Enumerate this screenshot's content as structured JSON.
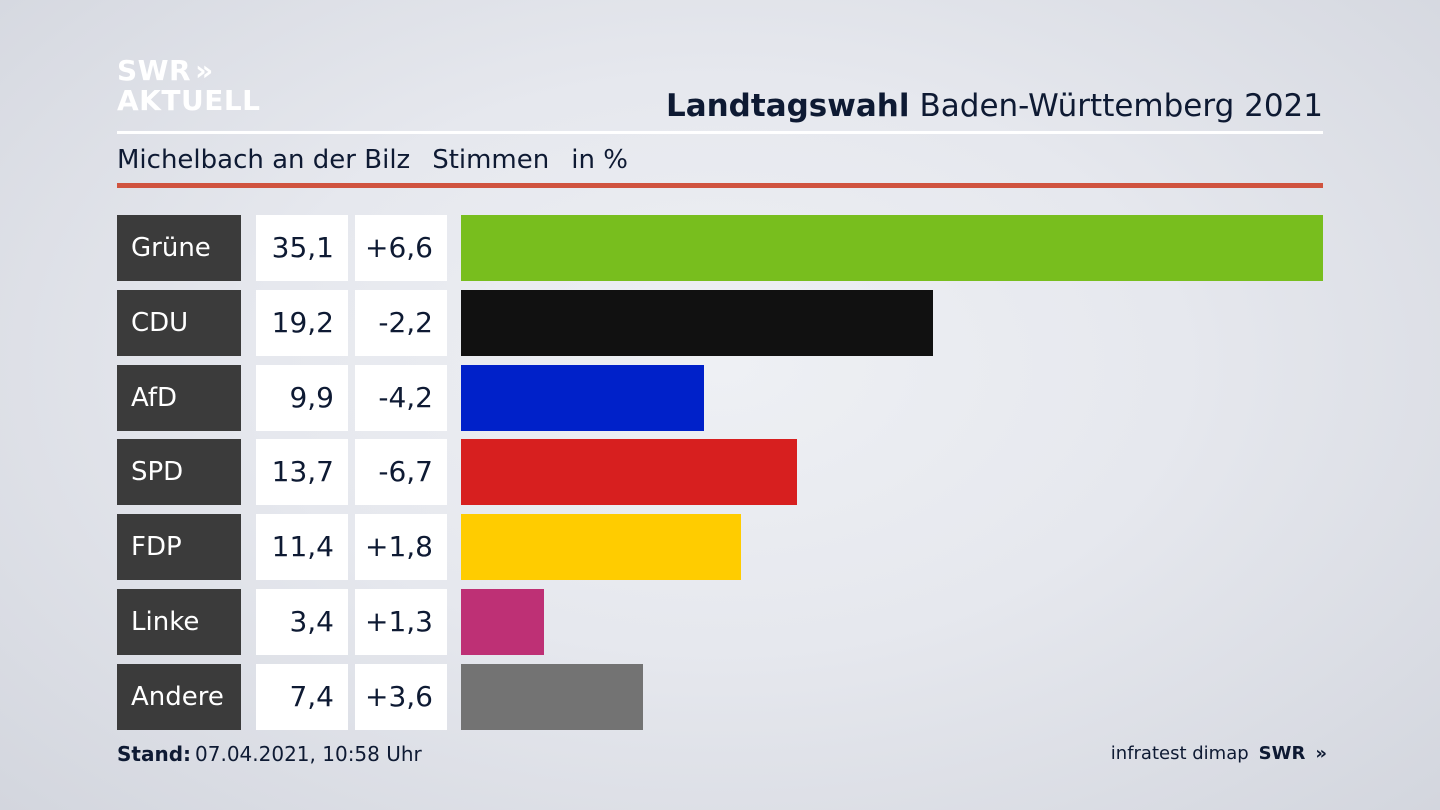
{
  "logo": {
    "line1": "SWR",
    "arrows": "»",
    "line2": "AKTUELL"
  },
  "header": {
    "title_bold": "Landtagswahl",
    "title_rest": "Baden-Württemberg 2021"
  },
  "subtitle": {
    "place": "Michelbach an der Bilz",
    "measure": "Stimmen",
    "unit": "in %"
  },
  "chart_data": {
    "type": "bar",
    "orientation": "horizontal",
    "categories": [
      "Grüne",
      "CDU",
      "AfD",
      "SPD",
      "FDP",
      "Linke",
      "Andere"
    ],
    "values": [
      35.1,
      19.2,
      9.9,
      13.7,
      11.4,
      3.4,
      7.4
    ],
    "value_labels": [
      "35,1",
      "19,2",
      "9,9",
      "13,7",
      "11,4",
      "3,4",
      "7,4"
    ],
    "changes": [
      6.6,
      -2.2,
      -4.2,
      -6.7,
      1.8,
      1.3,
      3.6
    ],
    "change_labels": [
      "+6,6",
      "-2,2",
      "-4,2",
      "-6,7",
      "+1,8",
      "+1,3",
      "+3,6"
    ],
    "colors": [
      "#78be1e",
      "#111111",
      "#0021c9",
      "#d71f1f",
      "#ffcc00",
      "#be3075",
      "#737373"
    ],
    "xlim": [
      0,
      35.1
    ],
    "grid": false,
    "legend": "none"
  },
  "footer": {
    "stand_label": "Stand:",
    "stand_value": "07.04.2021, 10:58 Uhr",
    "source": "infratest dimap",
    "brand": "SWR",
    "brand_arrows": "»"
  }
}
